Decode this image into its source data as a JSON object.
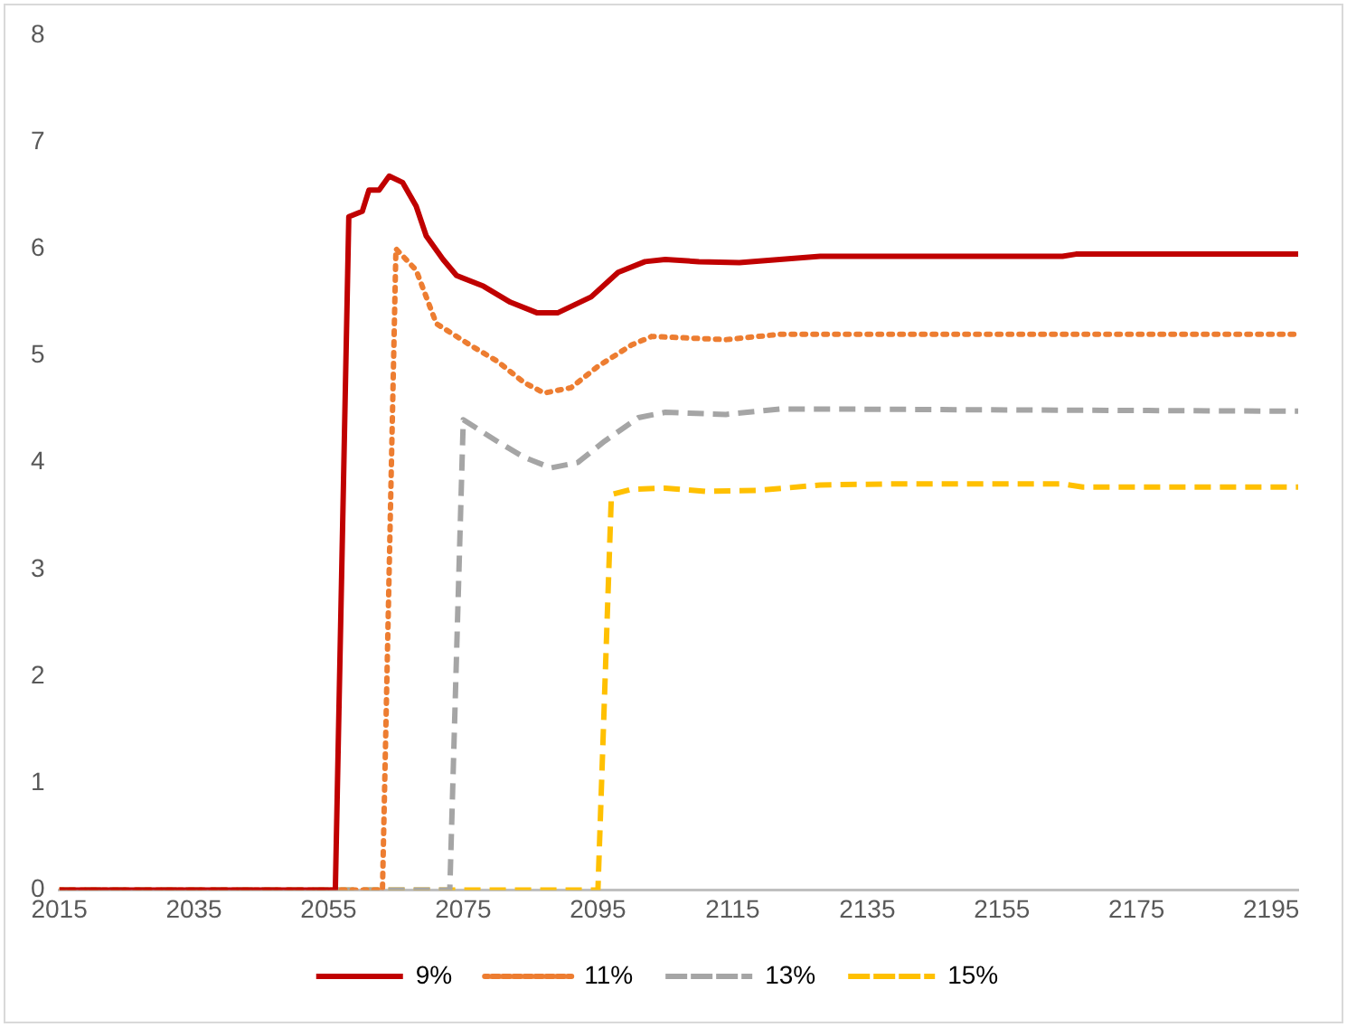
{
  "chart_data": {
    "type": "line",
    "xlim": [
      2015,
      2199
    ],
    "xticks": [
      2015,
      2035,
      2055,
      2075,
      2095,
      2115,
      2135,
      2155,
      2175,
      2195
    ],
    "ylim": [
      0,
      8
    ],
    "yticks": [
      0,
      1,
      2,
      3,
      4,
      5,
      6,
      7,
      8
    ],
    "grid": false,
    "legend": "bottom",
    "marker": "none",
    "series": [
      {
        "name": "9%",
        "color": "#c00000",
        "line_style": "solid",
        "x": [
          2015,
          2056,
          2058,
          2060,
          2061,
          2062.5,
          2064,
          2066,
          2068,
          2069.5,
          2072,
          2074,
          2078,
          2082,
          2086,
          2089,
          2094,
          2098,
          2102,
          2105,
          2110,
          2116,
          2122,
          2128,
          2164,
          2166,
          2199
        ],
        "values": [
          0,
          0,
          6.3,
          6.35,
          6.55,
          6.55,
          6.68,
          6.62,
          6.4,
          6.12,
          5.9,
          5.75,
          5.65,
          5.5,
          5.4,
          5.4,
          5.55,
          5.78,
          5.88,
          5.9,
          5.88,
          5.87,
          5.9,
          5.93,
          5.93,
          5.95,
          5.95
        ]
      },
      {
        "name": "11%",
        "color": "#ed7d31",
        "line_style": "dotted",
        "x": [
          2015,
          2063,
          2065,
          2068,
          2071,
          2076,
          2080,
          2084,
          2087,
          2091,
          2095,
          2100,
          2103,
          2114,
          2122,
          2199
        ],
        "values": [
          0,
          0,
          6.0,
          5.8,
          5.3,
          5.1,
          4.95,
          4.75,
          4.65,
          4.7,
          4.9,
          5.1,
          5.18,
          5.15,
          5.2,
          5.2
        ]
      },
      {
        "name": "13%",
        "color": "#a5a5a5",
        "line_style": "dashed",
        "x": [
          2015,
          2073,
          2075,
          2080,
          2084,
          2088,
          2092,
          2096,
          2101,
          2105,
          2114,
          2122,
          2130,
          2199
        ],
        "values": [
          0,
          0,
          4.4,
          4.2,
          4.05,
          3.95,
          4.0,
          4.2,
          4.42,
          4.47,
          4.45,
          4.5,
          4.5,
          4.48
        ]
      },
      {
        "name": "15%",
        "color": "#ffc000",
        "line_style": "dashed",
        "x": [
          2015,
          2095,
          2097,
          2100,
          2105,
          2111,
          2119,
          2128,
          2139,
          2164,
          2167,
          2199
        ],
        "values": [
          0,
          0,
          3.7,
          3.75,
          3.76,
          3.73,
          3.74,
          3.79,
          3.8,
          3.8,
          3.77,
          3.77
        ]
      }
    ]
  }
}
